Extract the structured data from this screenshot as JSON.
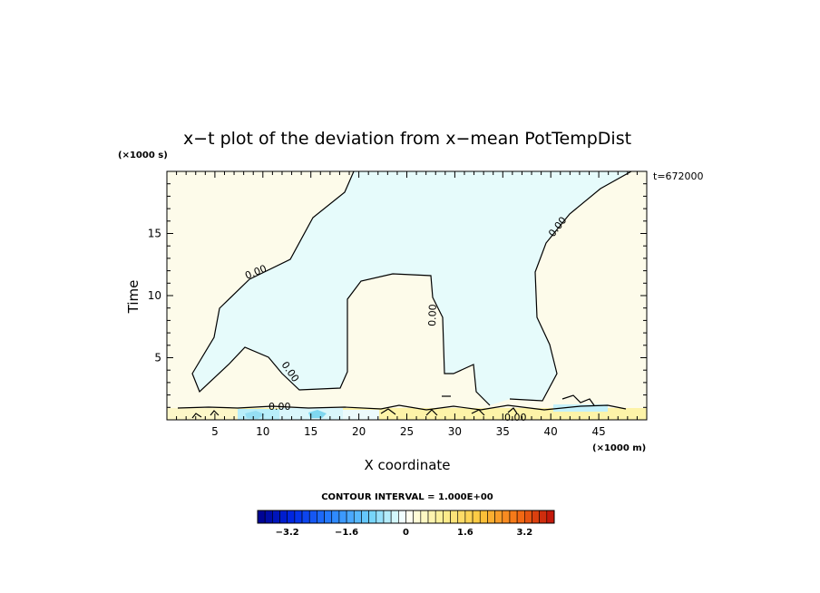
{
  "chart_data": {
    "type": "heatmap",
    "title": "x−t plot of the deviation from x−mean PotTempDist",
    "xlabel": "X coordinate",
    "ylabel": "Time",
    "x_unit": "(×1000 m)",
    "y_unit": "(×1000 s)",
    "time_stamp": "t=672000",
    "xlim": [
      0,
      50
    ],
    "ylim": [
      0,
      20
    ],
    "x_ticks": [
      5,
      10,
      15,
      20,
      25,
      30,
      35,
      40,
      45
    ],
    "y_ticks": [
      5,
      10,
      15
    ],
    "contour_interval_label": "CONTOUR INTERVAL = 1.000E+00",
    "contour_labels": [
      "0.00",
      "0.00",
      "0.00",
      "0.00",
      "0.00",
      "0.00"
    ],
    "colorbar": {
      "min": -4.0,
      "max": 4.0,
      "step": 0.2,
      "tick_values": [
        -3.2,
        -1.6,
        0,
        1.6,
        3.2
      ],
      "tick_labels": [
        "−3.2",
        "−1.6",
        "0",
        "1.6",
        "3.2"
      ]
    },
    "colors": {
      "positive_fill": "#fdfbea",
      "negative_fill": "#e6fbfb",
      "near_surface_warm": "#fdf3a8",
      "near_surface_cool": "#9ee3f5",
      "contour_line": "#000000"
    },
    "regions": [
      {
        "sign": "negative",
        "description_value": -0.1
      },
      {
        "sign": "positive",
        "description_value": 0.1
      }
    ]
  }
}
